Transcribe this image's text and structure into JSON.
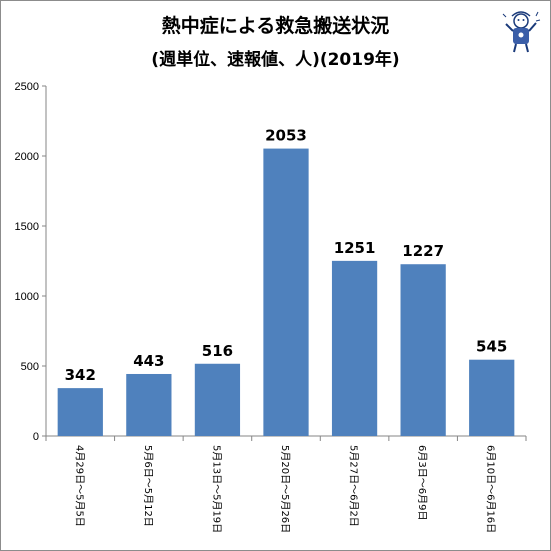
{
  "chart_data": {
    "type": "bar",
    "title": "熱中症による救急搬送状況",
    "subtitle": "(週単位、速報値、人)(2019年)",
    "categories": [
      "4月29日～5月5日",
      "5月6日～5月12日",
      "5月13日～5月19日",
      "5月20日～5月26日",
      "5月27日～6月2日",
      "6月3日～6月9日",
      "6月10日～6月16日"
    ],
    "values": [
      342,
      443,
      516,
      2053,
      1251,
      1227,
      545
    ],
    "data_labels": [
      "342",
      "443",
      "516",
      "2053",
      "1251",
      "1227",
      "545"
    ],
    "ylim": [
      0,
      2500
    ],
    "yticks": [
      "0",
      "500",
      "1000",
      "1500",
      "2000",
      "2500"
    ],
    "xlabel": "",
    "ylabel": "",
    "bar_color": "#4f81bd",
    "grid": false,
    "legend": "none"
  },
  "decor": {
    "mascot_icon": "mascot-character-icon"
  }
}
